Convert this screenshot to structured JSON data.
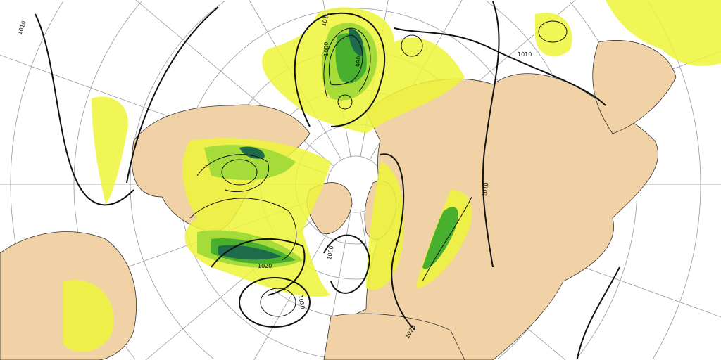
{
  "map": {
    "projection": "polar-stereographic",
    "colors": {
      "land": "#f0d2a6",
      "precip_light": "#eef53a",
      "precip_mid": "#a6dc3a",
      "precip_heavy": "#48b02e",
      "precip_extreme": "#1e6b4c",
      "isobar": "#111111",
      "graticule": "#888888"
    },
    "isobar_labels": [
      {
        "text": "1010"
      },
      {
        "text": "1000"
      },
      {
        "text": "990"
      },
      {
        "text": "1020"
      },
      {
        "text": "1030"
      },
      {
        "text": "1000"
      },
      {
        "text": "1010"
      },
      {
        "text": "1020"
      },
      {
        "text": "1010"
      },
      {
        "text": "1010"
      }
    ]
  }
}
